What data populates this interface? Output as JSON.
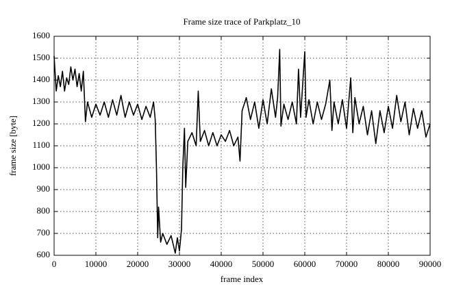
{
  "chart_data": {
    "type": "line",
    "title": "Frame size trace of Parkplatz_10",
    "x_label": "frame index",
    "y_label": "frame size [byte]",
    "color": "#000000",
    "grid": true,
    "xlim": [
      0,
      90000
    ],
    "ylim": [
      600,
      1600
    ],
    "xticks": [
      0,
      10000,
      20000,
      30000,
      40000,
      50000,
      60000,
      70000,
      80000,
      90000
    ],
    "yticks": [
      600,
      700,
      800,
      900,
      1000,
      1100,
      1200,
      1300,
      1400,
      1500,
      1600
    ],
    "x": [
      0,
      500,
      1000,
      1500,
      2000,
      2500,
      3000,
      3500,
      4000,
      4500,
      5000,
      5500,
      6000,
      6500,
      7000,
      7500,
      8000,
      9000,
      10000,
      11000,
      12000,
      13000,
      14000,
      15000,
      16000,
      17000,
      18000,
      19000,
      20000,
      21000,
      22000,
      23000,
      23800,
      24200,
      24500,
      24800,
      25000,
      25500,
      26000,
      27000,
      28000,
      29000,
      29500,
      30000,
      30500,
      30800,
      31200,
      31500,
      32000,
      33000,
      34000,
      34500,
      35000,
      36000,
      37000,
      38000,
      39000,
      40000,
      41000,
      42000,
      43000,
      44000,
      44500,
      45000,
      46000,
      47000,
      48000,
      49000,
      50000,
      51000,
      52000,
      53000,
      53500,
      54000,
      54300,
      55000,
      56000,
      57000,
      58000,
      58500,
      59000,
      60000,
      60300,
      61000,
      62000,
      63000,
      64000,
      65000,
      66000,
      66500,
      67000,
      68000,
      69000,
      70000,
      71000,
      71500,
      72000,
      73000,
      74000,
      75000,
      76000,
      77000,
      78000,
      79000,
      80000,
      81000,
      82000,
      83000,
      84000,
      85000,
      86000,
      87000,
      88000,
      89000,
      90000
    ],
    "values": [
      1510,
      1350,
      1420,
      1370,
      1440,
      1350,
      1410,
      1380,
      1460,
      1400,
      1450,
      1370,
      1430,
      1350,
      1440,
      1210,
      1300,
      1230,
      1290,
      1240,
      1300,
      1230,
      1310,
      1240,
      1330,
      1230,
      1300,
      1240,
      1290,
      1220,
      1280,
      1230,
      1300,
      1220,
      1000,
      680,
      820,
      660,
      700,
      650,
      690,
      610,
      680,
      620,
      720,
      1000,
      1180,
      910,
      1120,
      1160,
      1100,
      1350,
      1120,
      1170,
      1100,
      1160,
      1100,
      1150,
      1120,
      1170,
      1100,
      1140,
      1030,
      1260,
      1320,
      1220,
      1300,
      1180,
      1310,
      1200,
      1360,
      1230,
      1320,
      1540,
      1190,
      1290,
      1220,
      1300,
      1200,
      1450,
      1230,
      1530,
      1230,
      1310,
      1200,
      1300,
      1220,
      1290,
      1400,
      1170,
      1300,
      1200,
      1310,
      1180,
      1410,
      1160,
      1320,
      1200,
      1280,
      1150,
      1260,
      1110,
      1260,
      1160,
      1280,
      1180,
      1330,
      1210,
      1300,
      1150,
      1270,
      1180,
      1260,
      1140,
      1200
    ]
  }
}
